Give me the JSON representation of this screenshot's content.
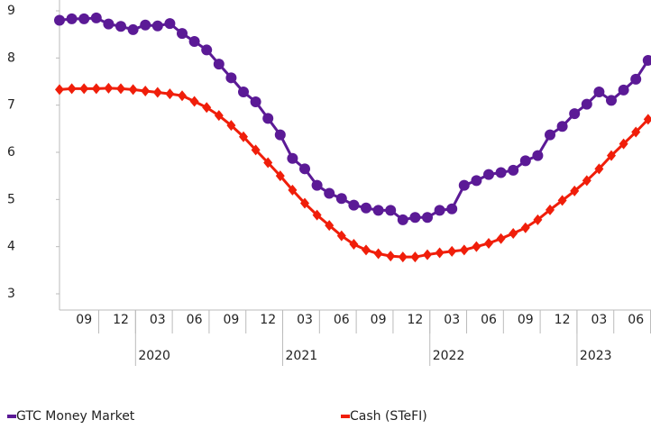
{
  "chart_data": {
    "type": "line",
    "categories": [
      null,
      null,
      "09",
      null,
      null,
      "12",
      null,
      null,
      "03",
      null,
      null,
      "06",
      null,
      null,
      "09",
      null,
      null,
      "12",
      null,
      null,
      "03",
      null,
      null,
      "06",
      null,
      null,
      "09",
      null,
      null,
      "12",
      null,
      null,
      "03",
      null,
      null,
      "06",
      null,
      null,
      "09",
      null,
      null,
      "12",
      null,
      null,
      "03",
      null,
      null,
      "06",
      null
    ],
    "years": [
      "2020",
      "2021",
      "2022",
      "2023"
    ],
    "series": [
      {
        "name": "GTC Money Market",
        "color": "#5b1a96",
        "marker": "circle",
        "values": [
          8.8,
          8.83,
          8.83,
          8.85,
          8.72,
          8.67,
          8.6,
          8.7,
          8.68,
          8.73,
          8.52,
          8.35,
          8.17,
          7.87,
          7.58,
          7.28,
          7.07,
          6.72,
          6.37,
          5.87,
          5.65,
          5.3,
          5.13,
          5.02,
          4.88,
          4.82,
          4.77,
          4.77,
          4.57,
          4.62,
          4.62,
          4.77,
          4.8,
          5.3,
          5.4,
          5.53,
          5.57,
          5.62,
          5.82,
          5.93,
          6.37,
          6.55,
          6.82,
          7.02,
          7.28,
          7.1,
          7.32,
          7.55,
          7.95
        ]
      },
      {
        "name": "Cash (STeFI)",
        "color": "#f01e0a",
        "marker": "diamond",
        "values": [
          7.33,
          7.35,
          7.35,
          7.35,
          7.36,
          7.35,
          7.33,
          7.3,
          7.27,
          7.24,
          7.2,
          7.08,
          6.95,
          6.78,
          6.57,
          6.33,
          6.05,
          5.78,
          5.5,
          5.2,
          4.92,
          4.67,
          4.45,
          4.23,
          4.05,
          3.93,
          3.85,
          3.8,
          3.78,
          3.78,
          3.83,
          3.87,
          3.9,
          3.93,
          4.0,
          4.07,
          4.17,
          4.28,
          4.4,
          4.57,
          4.78,
          4.98,
          5.18,
          5.4,
          5.65,
          5.93,
          6.18,
          6.43,
          6.7
        ]
      }
    ],
    "ylim": [
      3,
      9
    ],
    "yticks": [
      3,
      4,
      5,
      6,
      7,
      8,
      9
    ],
    "grid": false,
    "legend": "bottom"
  }
}
